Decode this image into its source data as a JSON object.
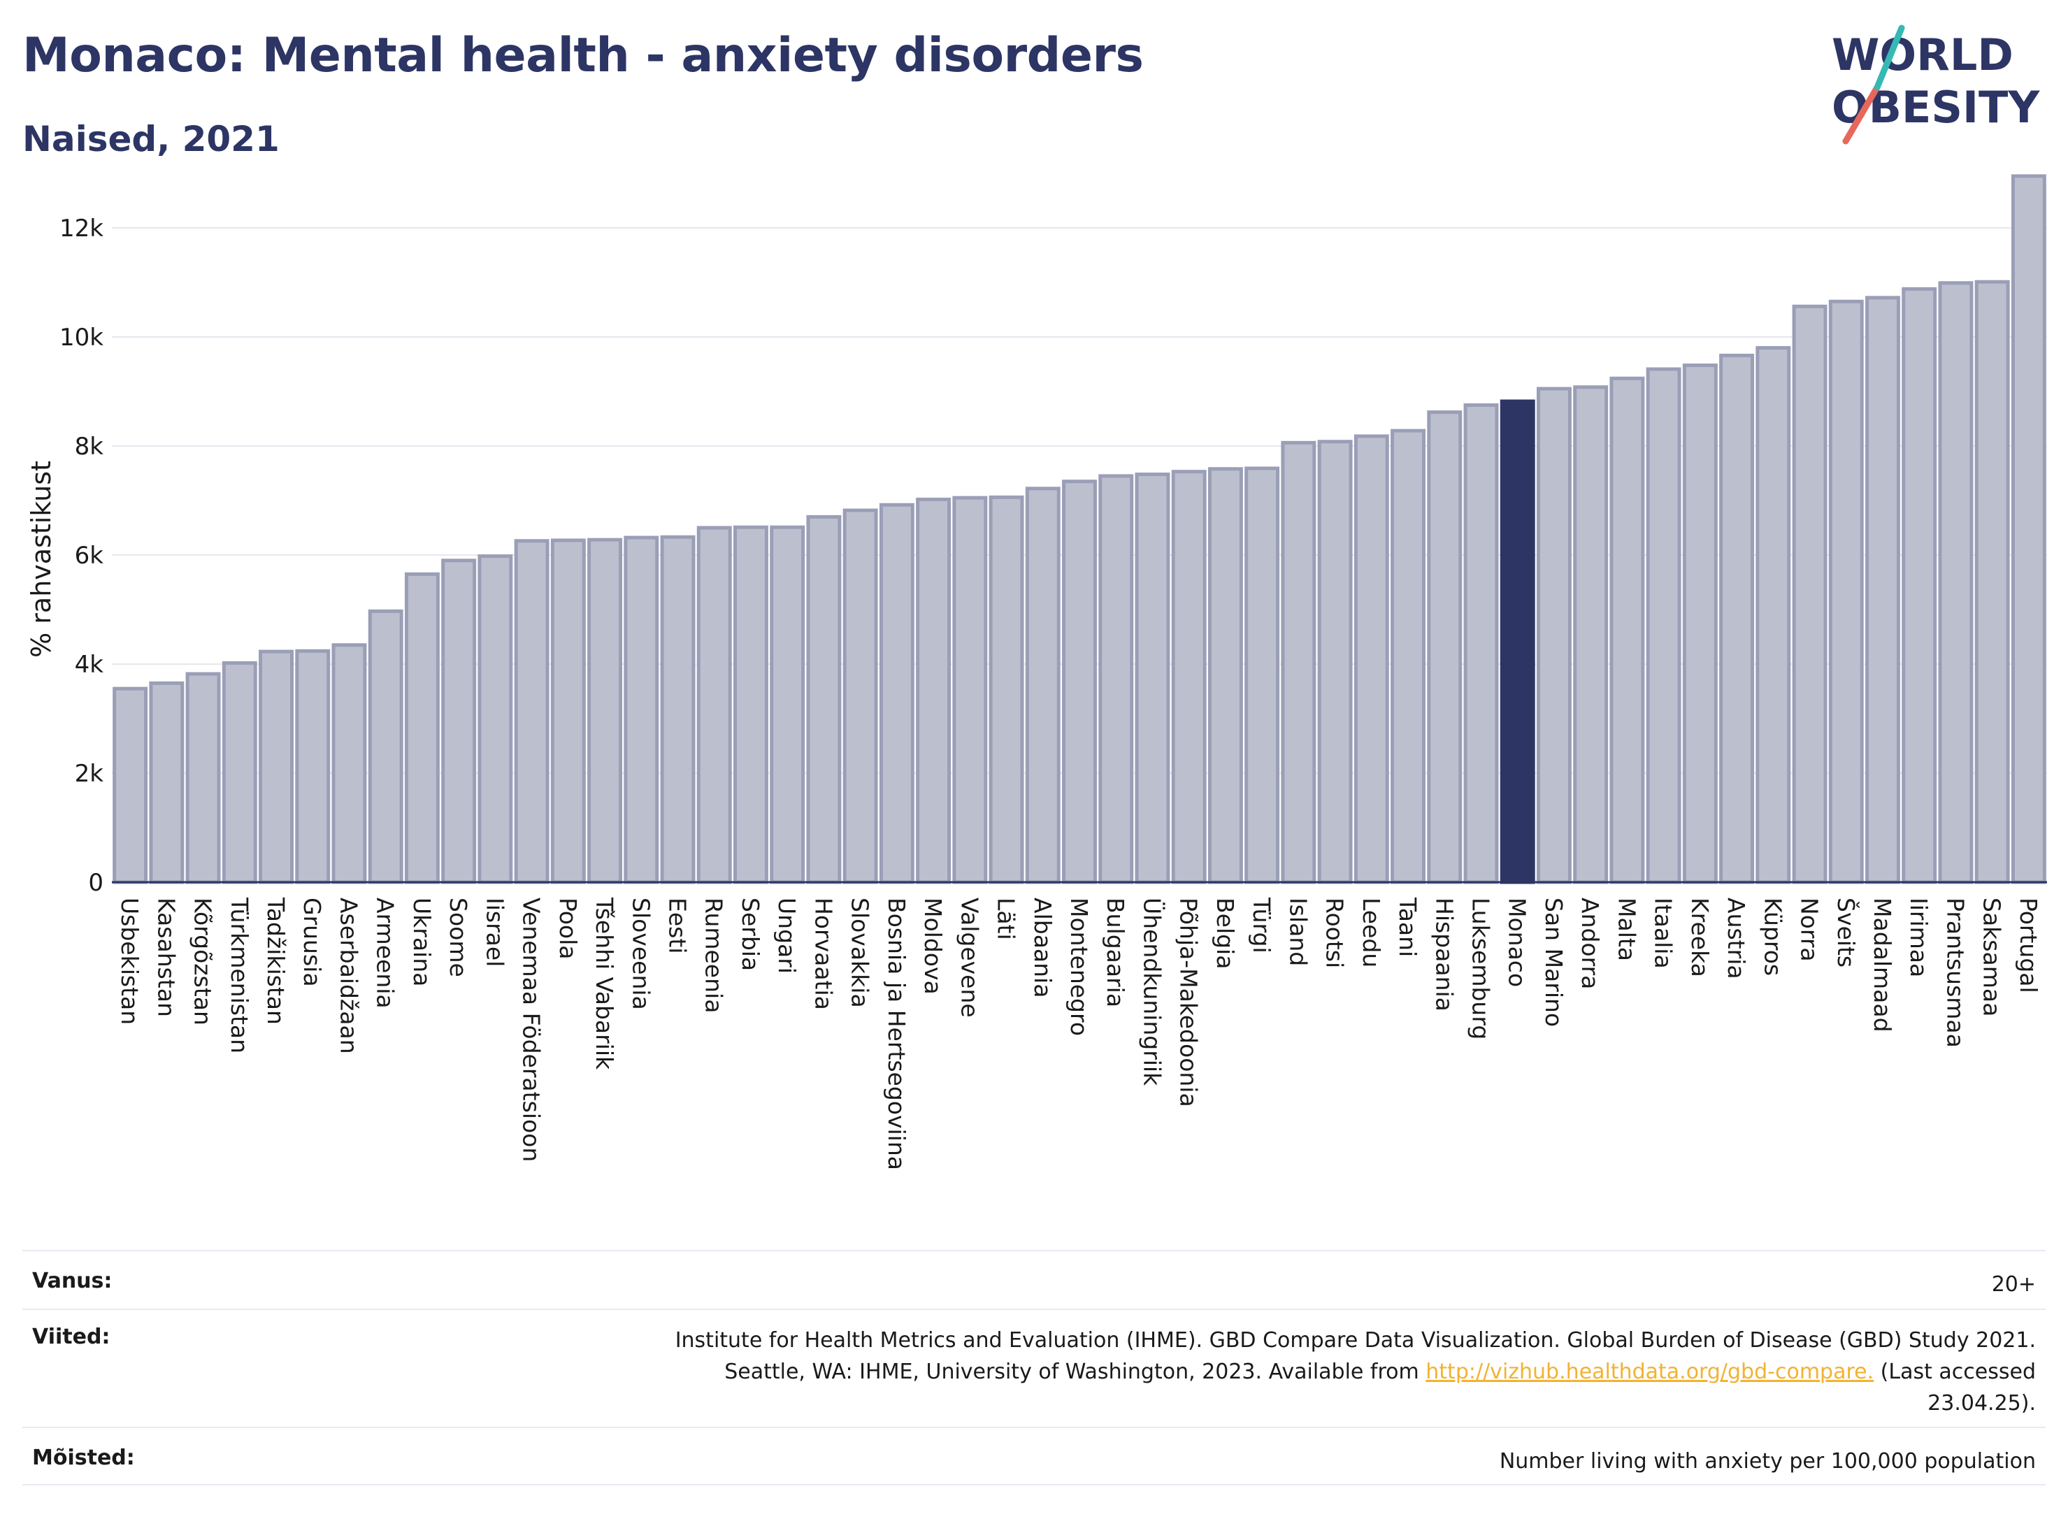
{
  "header": {
    "title": "Monaco: Mental health - anxiety disorders",
    "subtitle": "Naised, 2021"
  },
  "logo": {
    "line1": "WORLD",
    "line2": "OBESITY"
  },
  "chart_data": {
    "type": "bar",
    "ylabel": "% rahvastikust",
    "xlabel": "",
    "ylim": [
      0,
      13000
    ],
    "yticks": [
      0,
      2000,
      4000,
      6000,
      8000,
      10000,
      12000
    ],
    "ytick_labels": [
      "0",
      "2k",
      "4k",
      "6k",
      "8k",
      "10k",
      "12k"
    ],
    "highlight": "Monaco",
    "colors": {
      "bar": "#bcc0ce",
      "bar_edge": "#9a9eb6",
      "highlight": "#2c3564",
      "grid": "#e6e6ee"
    },
    "categories": [
      "Usbekistan",
      "Kasahstan",
      "Kõrgõzstan",
      "Türkmenistan",
      "Tadžikistan",
      "Gruusia",
      "Aserbaidžaan",
      "Armeenia",
      "Ukraina",
      "Soome",
      "Iisrael",
      "Venemaa Föderatsioon",
      "Poola",
      "Tšehhi Vabariik",
      "Sloveenia",
      "Eesti",
      "Rumeenia",
      "Serbia",
      "Ungari",
      "Horvaatia",
      "Slovakkia",
      "Bosnia ja Hertsegoviina",
      "Moldova",
      "Valgevene",
      "Läti",
      "Albaania",
      "Montenegro",
      "Bulgaaria",
      "Ühendkuningriik",
      "Põhja-Makedoonia",
      "Belgia",
      "Türgi",
      "Island",
      "Rootsi",
      "Leedu",
      "Taani",
      "Hispaania",
      "Luksemburg",
      "Monaco",
      "San Marino",
      "Andorra",
      "Malta",
      "Itaalia",
      "Kreeka",
      "Austria",
      "Küpros",
      "Norra",
      "Šveits",
      "Madalmaad",
      "Iirimaa",
      "Prantsusmaa",
      "Saksamaa",
      "Portugal"
    ],
    "values": [
      3550,
      3650,
      3820,
      4020,
      4230,
      4240,
      4350,
      4970,
      5650,
      5900,
      5980,
      6260,
      6270,
      6280,
      6320,
      6330,
      6500,
      6510,
      6510,
      6700,
      6820,
      6920,
      7020,
      7050,
      7060,
      7220,
      7350,
      7450,
      7480,
      7530,
      7580,
      7590,
      8060,
      8080,
      8180,
      8280,
      8620,
      8750,
      8820,
      9050,
      9080,
      9240,
      9410,
      9480,
      9660,
      9800,
      10560,
      10650,
      10720,
      10880,
      10990,
      11010,
      12950
    ]
  },
  "meta": {
    "age_label": "Vanus:",
    "age_value": "20+",
    "refs_label": "Viited:",
    "refs_line1": "Institute for Health Metrics and Evaluation (IHME). GBD Compare Data Visualization. Global Burden of Disease (GBD) Study 2021.",
    "refs_line2_pre": "Seattle, WA: IHME, University of Washington, 2023. Available from ",
    "refs_link": "http://vizhub.healthdata.org/gbd-compare.",
    "refs_line2_post": " (Last accessed",
    "refs_line3": "23.04.25).",
    "def_label": "Mõisted:",
    "def_value": "Number living with anxiety per 100,000 population"
  }
}
